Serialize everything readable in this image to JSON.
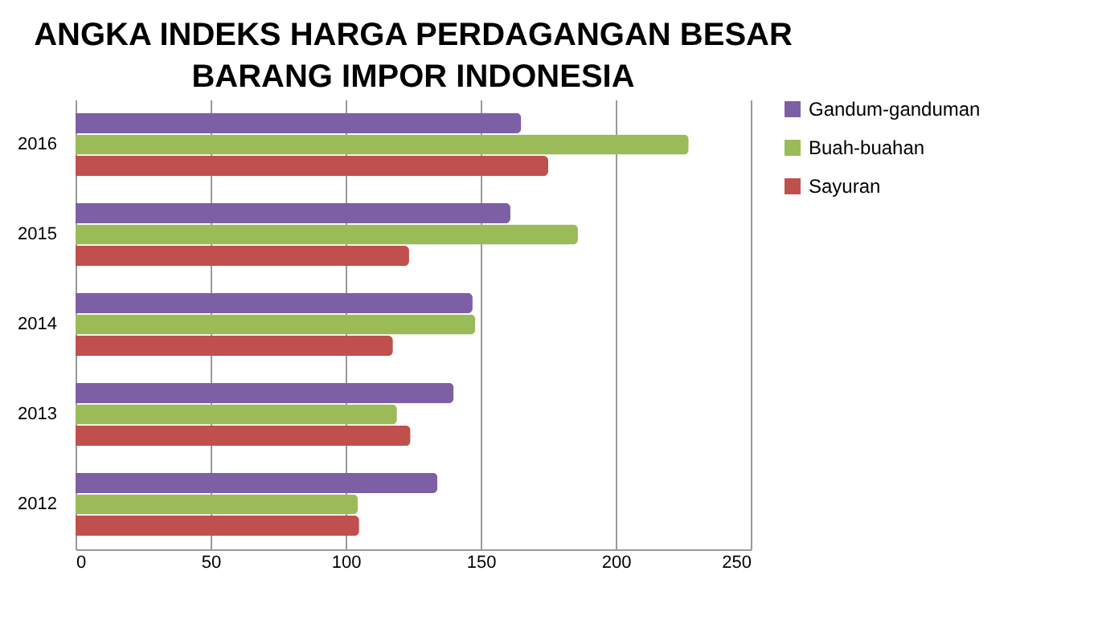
{
  "chart_data": {
    "type": "bar",
    "orientation": "horizontal",
    "title": "ANGKA INDEKS HARGA PERDAGANGAN BESAR BARANG IMPOR INDONESIA",
    "categories": [
      "2016",
      "2015",
      "2014",
      "2013",
      "2012"
    ],
    "series": [
      {
        "name": "Gandum-ganduman",
        "color": "#7d5fa6",
        "values": [
          165,
          161,
          147,
          140,
          134
        ]
      },
      {
        "name": "Buah-buahan",
        "color": "#9bbb59",
        "values": [
          227,
          186,
          148,
          119,
          104.5
        ]
      },
      {
        "name": "Sayuran",
        "color": "#c0504d",
        "values": [
          175,
          123.5,
          117.5,
          124,
          105
        ]
      }
    ],
    "xlim": [
      0,
      250
    ],
    "xticks": [
      0,
      50,
      100,
      150,
      200,
      250
    ],
    "grid": "x",
    "legend": "right"
  }
}
